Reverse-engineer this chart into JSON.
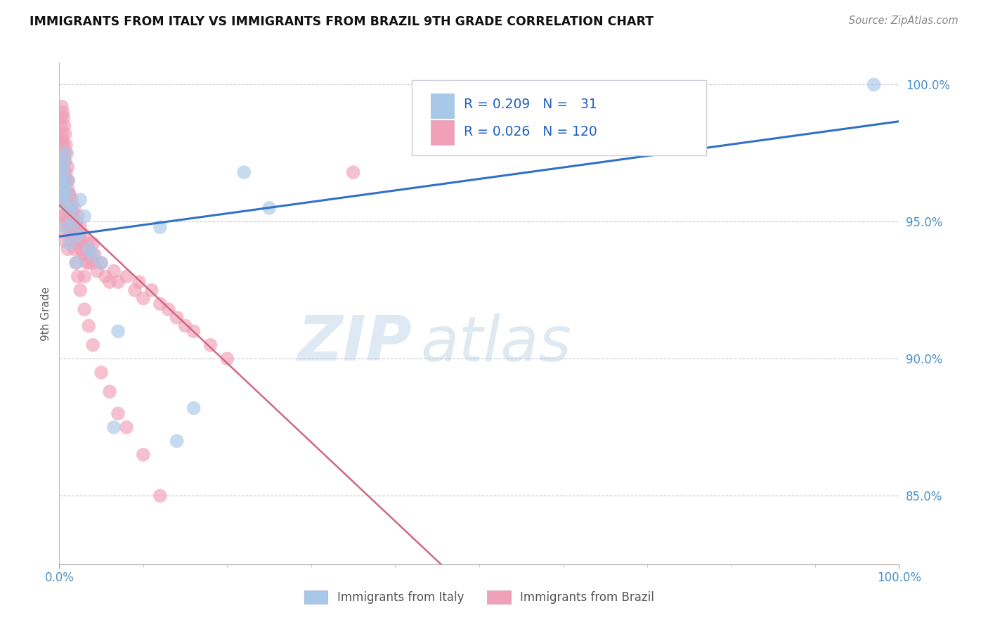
{
  "title": "IMMIGRANTS FROM ITALY VS IMMIGRANTS FROM BRAZIL 9TH GRADE CORRELATION CHART",
  "source": "Source: ZipAtlas.com",
  "ylabel": "9th Grade",
  "legend_italy": "Immigrants from Italy",
  "legend_brazil": "Immigrants from Brazil",
  "R_italy": 0.209,
  "N_italy": 31,
  "R_brazil": 0.026,
  "N_brazil": 120,
  "xlim": [
    0.0,
    1.0
  ],
  "ylim": [
    0.825,
    1.008
  ],
  "yticks": [
    0.85,
    0.9,
    0.95,
    1.0
  ],
  "ytick_labels": [
    "85.0%",
    "90.0%",
    "95.0%",
    "100.0%"
  ],
  "xticks": [
    0.0,
    1.0
  ],
  "xtick_labels": [
    "0.0%",
    "100.0%"
  ],
  "color_italy": "#a8c8e8",
  "color_brazil": "#f0a0b8",
  "trendline_italy_color": "#3070c8",
  "trendline_brazil_color": "#d06880",
  "watermark_zip": "ZIP",
  "watermark_atlas": "atlas",
  "italy_x": [
    0.001,
    0.002,
    0.003,
    0.004,
    0.005,
    0.006,
    0.006,
    0.007,
    0.008,
    0.009,
    0.01,
    0.011,
    0.012,
    0.015,
    0.018,
    0.02,
    0.022,
    0.025,
    0.03,
    0.035,
    0.04,
    0.05,
    0.065,
    0.07,
    0.12,
    0.16,
    0.22,
    0.25,
    0.62,
    0.97,
    0.14
  ],
  "italy_y": [
    0.965,
    0.97,
    0.96,
    0.958,
    0.968,
    0.972,
    0.963,
    0.975,
    0.948,
    0.96,
    0.965,
    0.955,
    0.942,
    0.955,
    0.95,
    0.935,
    0.945,
    0.958,
    0.952,
    0.94,
    0.938,
    0.935,
    0.875,
    0.91,
    0.948,
    0.882,
    0.968,
    0.955,
    0.99,
    1.0,
    0.87
  ],
  "brazil_x": [
    0.001,
    0.001,
    0.002,
    0.002,
    0.003,
    0.003,
    0.003,
    0.004,
    0.004,
    0.004,
    0.005,
    0.005,
    0.005,
    0.005,
    0.006,
    0.006,
    0.006,
    0.006,
    0.007,
    0.007,
    0.007,
    0.007,
    0.007,
    0.008,
    0.008,
    0.008,
    0.008,
    0.009,
    0.009,
    0.009,
    0.01,
    0.01,
    0.01,
    0.01,
    0.011,
    0.011,
    0.012,
    0.012,
    0.013,
    0.013,
    0.014,
    0.015,
    0.015,
    0.015,
    0.016,
    0.017,
    0.018,
    0.018,
    0.019,
    0.02,
    0.02,
    0.021,
    0.022,
    0.022,
    0.023,
    0.024,
    0.025,
    0.025,
    0.026,
    0.027,
    0.028,
    0.03,
    0.03,
    0.03,
    0.032,
    0.033,
    0.035,
    0.035,
    0.037,
    0.04,
    0.04,
    0.042,
    0.045,
    0.05,
    0.055,
    0.06,
    0.065,
    0.07,
    0.08,
    0.09,
    0.095,
    0.1,
    0.11,
    0.12,
    0.13,
    0.14,
    0.15,
    0.16,
    0.18,
    0.2,
    0.002,
    0.003,
    0.004,
    0.005,
    0.006,
    0.007,
    0.008,
    0.009,
    0.01,
    0.011,
    0.012,
    0.013,
    0.014,
    0.015,
    0.016,
    0.017,
    0.018,
    0.02,
    0.022,
    0.025,
    0.03,
    0.035,
    0.04,
    0.05,
    0.06,
    0.07,
    0.08,
    0.1,
    0.12,
    0.35
  ],
  "brazil_y": [
    0.98,
    0.972,
    0.985,
    0.975,
    0.982,
    0.978,
    0.97,
    0.98,
    0.975,
    0.968,
    0.978,
    0.972,
    0.965,
    0.958,
    0.975,
    0.968,
    0.96,
    0.952,
    0.972,
    0.965,
    0.958,
    0.95,
    0.943,
    0.968,
    0.96,
    0.953,
    0.946,
    0.965,
    0.957,
    0.95,
    0.962,
    0.955,
    0.948,
    0.94,
    0.958,
    0.95,
    0.96,
    0.952,
    0.955,
    0.948,
    0.95,
    0.958,
    0.95,
    0.943,
    0.952,
    0.948,
    0.955,
    0.948,
    0.945,
    0.95,
    0.943,
    0.948,
    0.952,
    0.945,
    0.942,
    0.945,
    0.948,
    0.94,
    0.943,
    0.94,
    0.938,
    0.945,
    0.938,
    0.93,
    0.94,
    0.935,
    0.942,
    0.935,
    0.938,
    0.942,
    0.935,
    0.938,
    0.932,
    0.935,
    0.93,
    0.928,
    0.932,
    0.928,
    0.93,
    0.925,
    0.928,
    0.922,
    0.925,
    0.92,
    0.918,
    0.915,
    0.912,
    0.91,
    0.905,
    0.9,
    0.988,
    0.992,
    0.99,
    0.988,
    0.985,
    0.982,
    0.978,
    0.975,
    0.97,
    0.965,
    0.96,
    0.958,
    0.955,
    0.952,
    0.948,
    0.945,
    0.94,
    0.935,
    0.93,
    0.925,
    0.918,
    0.912,
    0.905,
    0.895,
    0.888,
    0.88,
    0.875,
    0.865,
    0.85,
    0.968
  ]
}
